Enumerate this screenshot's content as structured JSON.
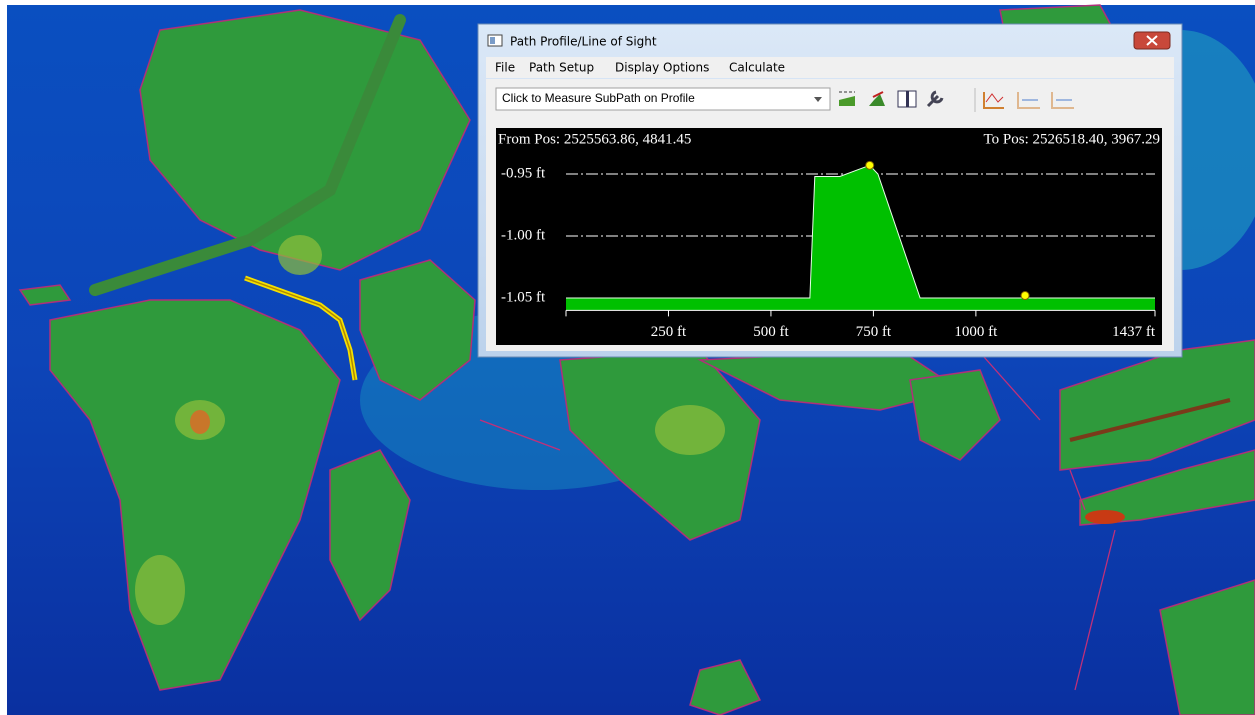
{
  "window_title": "Path Profile/Line of Sight",
  "menu": [
    "File",
    "Path Setup",
    "Display Options",
    "Calculate"
  ],
  "toolbar_dropdown": "Click to Measure SubPath on Profile",
  "chart_data": {
    "type": "area",
    "from_label": "From Pos: 2525563.86, 4841.45",
    "to_label": "To Pos: 2526518.40, 3967.29",
    "x": [
      0,
      595,
      607,
      668,
      741,
      761,
      864,
      1437
    ],
    "values": [
      -1.05,
      -1.05,
      -0.952,
      -0.952,
      -0.943,
      -0.95,
      -1.05,
      -1.05
    ],
    "color": "#00c000",
    "markers": [
      {
        "x": 741,
        "value": -0.943
      },
      {
        "x": 1120,
        "value": -1.048
      }
    ],
    "marker_color": "#ffff00",
    "xlim": [
      0,
      1437
    ],
    "xticks": [
      {
        "value": 250,
        "label": "250 ft"
      },
      {
        "value": 500,
        "label": "500 ft"
      },
      {
        "value": 750,
        "label": "750 ft"
      },
      {
        "value": 1000,
        "label": "1000 ft"
      },
      {
        "value": 1437,
        "label": "1437 ft"
      }
    ],
    "ylim": [
      -1.06,
      -0.93
    ],
    "yticks": [
      {
        "value": -1.05,
        "label": "-1.05 ft"
      },
      {
        "value": -1.0,
        "label": "-1.00 ft"
      },
      {
        "value": -0.95,
        "label": "-0.95 ft"
      }
    ],
    "grid": true
  }
}
